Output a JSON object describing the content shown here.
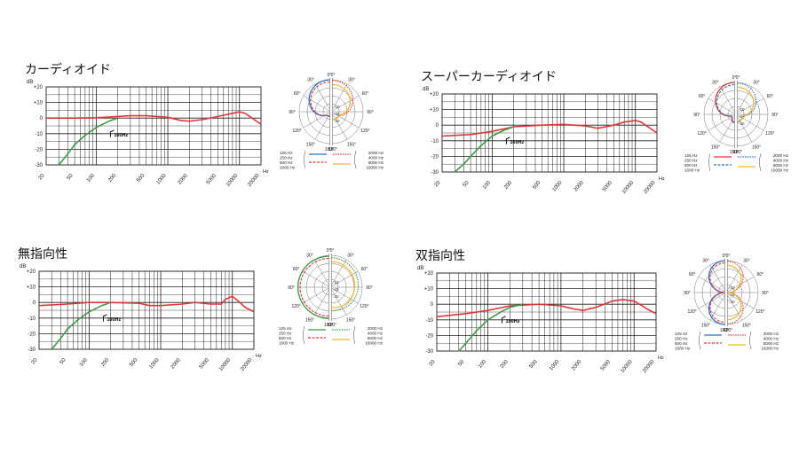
{
  "freq_ticks": [
    "20",
    "50",
    "100",
    "200",
    "500",
    "1000",
    "2000",
    "5000",
    "10000",
    "20000"
  ],
  "hz_unit": "Hz",
  "db_label": "dB",
  "db_ticks": [
    "+20",
    "+10",
    "0",
    "-10",
    "-20",
    "-30"
  ],
  "cutoff_label": "100Hz",
  "colors": {
    "red": "#e0373b",
    "green": "#3e9a47",
    "blue": "#2f6fc4",
    "yellow": "#f2b632",
    "grid": "#222222"
  },
  "panels": [
    {
      "title": "カーディオイド",
      "polar_angles": [
        "180°",
        "150°",
        "120°",
        "90°",
        "60°",
        "30°",
        "0°"
      ],
      "polar_angles_right": [
        "180°",
        "150°",
        "120°",
        "90°",
        "60°",
        "30°",
        "0°"
      ],
      "polar_rings": [
        "-10",
        "-20",
        "-30"
      ],
      "legend_left": [
        "125 Hz",
        "250 Hz",
        "500 Hz",
        "1000 Hz"
      ],
      "legend_right": [
        "2000 Hz",
        "4000 Hz",
        "8000 Hz",
        "16000 Hz"
      ]
    },
    {
      "title": "スーパーカーディオイド",
      "polar_angles": [
        "180°",
        "150°",
        "120°",
        "90°",
        "60°",
        "30°",
        "0°"
      ],
      "polar_angles_right": [
        "180°",
        "150°",
        "120°",
        "90°",
        "60°",
        "30°",
        "0°"
      ],
      "polar_rings": [
        "-10",
        "-20",
        "-30"
      ],
      "legend_left": [
        "125 Hz",
        "250 Hz",
        "500 Hz",
        "1000 Hz"
      ],
      "legend_right": [
        "2000 Hz",
        "4000 Hz",
        "8000 Hz",
        "16000 Hz"
      ]
    },
    {
      "title": "無指向性",
      "polar_angles": [
        "180°",
        "150°",
        "120°",
        "90°",
        "60°",
        "30°",
        "0°"
      ],
      "polar_angles_right": [
        "180°",
        "150°",
        "120°",
        "90°",
        "60°",
        "30°",
        "0°"
      ],
      "polar_rings": [
        "-10",
        "-20",
        "-30"
      ],
      "legend_left": [
        "125 Hz",
        "250 Hz",
        "500 Hz",
        "1000 Hz"
      ],
      "legend_right": [
        "2000 Hz",
        "4000 Hz",
        "8000 Hz",
        "16000 Hz"
      ]
    },
    {
      "title": "双指向性",
      "polar_angles": [
        "180°",
        "150°",
        "120°",
        "90°",
        "60°",
        "30°",
        "0°"
      ],
      "polar_angles_right": [
        "180°",
        "150°",
        "120°",
        "90°",
        "60°",
        "30°",
        "0°"
      ],
      "polar_rings": [
        "-10",
        "-20",
        "-30"
      ],
      "legend_left": [
        "125 Hz",
        "250 Hz",
        "500 Hz",
        "1000 Hz"
      ],
      "legend_right": [
        "2000 Hz",
        "4000 Hz",
        "8000 Hz",
        "16000 Hz"
      ]
    }
  ],
  "chart_data": [
    {
      "type": "line",
      "title": "カーディオイド",
      "xlabel": "Hz",
      "ylabel": "dB",
      "xscale": "log",
      "xlim": [
        20,
        20000
      ],
      "ylim": [
        -30,
        20
      ],
      "series": [
        {
          "color": "red",
          "x": [
            20,
            50,
            100,
            200,
            300,
            500,
            1000,
            1500,
            2000,
            3000,
            5000,
            7000,
            10000,
            12000,
            15000,
            20000
          ],
          "y": [
            0,
            0,
            0.2,
            1,
            1.5,
            1.5,
            0.5,
            -1.5,
            -2,
            -1,
            1,
            2.5,
            4,
            3,
            0,
            -4
          ]
        },
        {
          "color": "green",
          "x": [
            30,
            40,
            50,
            70,
            100,
            150,
            200
          ],
          "y": [
            -30,
            -23,
            -17,
            -11,
            -6,
            -2,
            0
          ]
        }
      ]
    },
    {
      "type": "line",
      "title": "スーパーカーディオイド",
      "xlabel": "Hz",
      "ylabel": "dB",
      "xscale": "log",
      "xlim": [
        20,
        20000
      ],
      "ylim": [
        -30,
        20
      ],
      "series": [
        {
          "color": "red",
          "x": [
            20,
            50,
            100,
            200,
            500,
            1000,
            2000,
            3000,
            5000,
            7000,
            10000,
            12000,
            15000,
            20000
          ],
          "y": [
            -7,
            -6,
            -4,
            -1,
            0,
            0.5,
            -0.5,
            -2,
            0,
            2,
            3,
            2,
            -1,
            -5
          ]
        },
        {
          "color": "green",
          "x": [
            30,
            40,
            50,
            70,
            100,
            150,
            200
          ],
          "y": [
            -30,
            -25,
            -20,
            -13,
            -7,
            -3,
            -1
          ]
        }
      ]
    },
    {
      "type": "line",
      "title": "無指向性",
      "xlabel": "Hz",
      "ylabel": "dB",
      "xscale": "log",
      "xlim": [
        20,
        20000
      ],
      "ylim": [
        -30,
        20
      ],
      "series": [
        {
          "color": "red",
          "x": [
            20,
            50,
            100,
            200,
            500,
            700,
            1000,
            2000,
            3000,
            5000,
            7000,
            8000,
            10000,
            12000,
            15000,
            20000
          ],
          "y": [
            -2,
            -1,
            0,
            0,
            -0.5,
            -2,
            -2,
            -1,
            0,
            -1,
            -1,
            2,
            4,
            1,
            -3,
            -6
          ]
        },
        {
          "color": "green",
          "x": [
            30,
            40,
            50,
            70,
            100,
            150,
            200
          ],
          "y": [
            -30,
            -23,
            -17,
            -11,
            -6,
            -2,
            0
          ]
        }
      ]
    },
    {
      "type": "line",
      "title": "双指向性",
      "xlabel": "Hz",
      "ylabel": "dB",
      "xscale": "log",
      "xlim": [
        20,
        20000
      ],
      "ylim": [
        -30,
        20
      ],
      "series": [
        {
          "color": "red",
          "x": [
            20,
            50,
            100,
            200,
            500,
            1000,
            1500,
            2000,
            3000,
            5000,
            7000,
            10000,
            12000,
            15000,
            20000
          ],
          "y": [
            -8,
            -6,
            -4,
            -1,
            0,
            -1,
            -3,
            -4,
            -2,
            2,
            3,
            2,
            0,
            -3,
            -6
          ]
        },
        {
          "color": "green",
          "x": [
            40,
            50,
            70,
            100,
            150,
            200,
            300
          ],
          "y": [
            -30,
            -25,
            -17,
            -10,
            -5,
            -2,
            0
          ]
        }
      ]
    }
  ]
}
